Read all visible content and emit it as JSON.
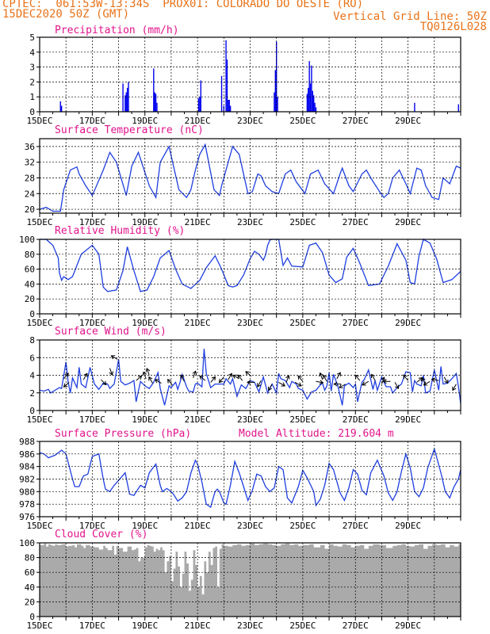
{
  "header": {
    "line1_left": "CPTEC:  061:53W-13:34S  PROX01: COLORADO DO OESTE (RO)",
    "line2_left": "15DEC2020 50Z (GMT)",
    "line2_right": "Vertical Grid Line: 50Z",
    "line3_right": "TQ0126L028"
  },
  "colors": {
    "series": "#1f3fe0",
    "title": "#e0148c",
    "header": "#e8731a",
    "bars": "#0000ee",
    "cloud": "#aaaaaa"
  },
  "x_tick_labels": [
    "15DEC",
    "17DEC",
    "19DEC",
    "21DEC",
    "23DEC",
    "25DEC",
    "27DEC",
    "29DEC"
  ],
  "chart_data": [
    {
      "type": "bar",
      "title": "Precipitation (mm/h)",
      "x": "hours since 15DEC 00Z",
      "ylim": [
        0,
        5
      ],
      "yticks": [
        0,
        1,
        2,
        3,
        4,
        5
      ],
      "events": [
        [
          19,
          0.7
        ],
        [
          20,
          0.4
        ],
        [
          76,
          1.9
        ],
        [
          78,
          1.1
        ],
        [
          79,
          1.3
        ],
        [
          80,
          1.6
        ],
        [
          81,
          2.0
        ],
        [
          104,
          2.9
        ],
        [
          105,
          1.3
        ],
        [
          106,
          1.2
        ],
        [
          107,
          0.6
        ],
        [
          145,
          0.9
        ],
        [
          146,
          1.0
        ],
        [
          147,
          2.1
        ],
        [
          166,
          2.4
        ],
        [
          168,
          0.4
        ],
        [
          170,
          4.8
        ],
        [
          171,
          3.5
        ],
        [
          172,
          0.8
        ],
        [
          173,
          0.8
        ],
        [
          174,
          0.4
        ],
        [
          214,
          1.3
        ],
        [
          215,
          2.8
        ],
        [
          216,
          4.7
        ],
        [
          217,
          1.0
        ],
        [
          244,
          1.2
        ],
        [
          245,
          1.6
        ],
        [
          246,
          3.4
        ],
        [
          247,
          1.9
        ],
        [
          248,
          3.1
        ],
        [
          249,
          1.4
        ],
        [
          250,
          1.1
        ],
        [
          251,
          0.6
        ],
        [
          252,
          0.3
        ],
        [
          342,
          0.6
        ],
        [
          382,
          0.5
        ]
      ]
    },
    {
      "type": "line",
      "title": "Surface Temperature (nC)",
      "ylim": [
        19,
        38
      ],
      "yticks": [
        20,
        24,
        28,
        32,
        36
      ],
      "x": [
        0,
        6,
        12,
        19,
        22,
        28,
        34,
        36,
        42,
        48,
        58,
        64,
        70,
        79,
        84,
        90,
        100,
        106,
        110,
        118,
        127,
        134,
        138,
        142,
        146,
        151,
        159,
        164,
        166,
        172,
        176,
        182,
        190,
        194,
        199,
        202,
        206,
        212,
        218,
        224,
        229,
        234,
        238,
        242,
        247,
        254,
        260,
        268,
        274,
        276,
        278,
        282,
        286,
        294,
        298,
        302,
        310,
        314,
        318,
        322,
        328,
        334,
        338,
        344,
        348,
        352,
        358,
        364,
        368,
        374,
        380,
        384
      ],
      "values": [
        20,
        20.5,
        19.5,
        19.5,
        25,
        30,
        30.8,
        29,
        26,
        23.5,
        30,
        34.5,
        32,
        23.5,
        31,
        34.5,
        26,
        23,
        32,
        36,
        25,
        23,
        25,
        30,
        34,
        36.5,
        25,
        23.5,
        26,
        32,
        36,
        34,
        24,
        24.5,
        29,
        28.5,
        26,
        24.5,
        24,
        29,
        30,
        27,
        25.5,
        24,
        29,
        30,
        26.5,
        24,
        29,
        30.5,
        29,
        26,
        24.5,
        29,
        30,
        28,
        24.5,
        23,
        24,
        28,
        30,
        26.5,
        24,
        30.5,
        30,
        26,
        23,
        22.5,
        28,
        26.5,
        31,
        30.5
      ]
    },
    {
      "type": "line",
      "title": "Relative Humidity (%)",
      "ylim": [
        0,
        100
      ],
      "yticks": [
        0,
        20,
        40,
        60,
        80,
        100
      ],
      "x": [
        0,
        3,
        6,
        12,
        17,
        18,
        20,
        22,
        26,
        30,
        38,
        48,
        54,
        58,
        62,
        70,
        76,
        80,
        86,
        92,
        98,
        104,
        110,
        118,
        124,
        130,
        138,
        146,
        152,
        160,
        166,
        172,
        176,
        180,
        186,
        192,
        196,
        200,
        204,
        206,
        208,
        210,
        212,
        214,
        216,
        218,
        222,
        226,
        230,
        240,
        246,
        252,
        258,
        264,
        270,
        276,
        280,
        286,
        292,
        300,
        310,
        318,
        326,
        334,
        338,
        342,
        346,
        350,
        356,
        362,
        368,
        376,
        384
      ],
      "values": [
        100,
        100,
        100,
        92,
        75,
        55,
        45,
        50,
        46,
        50,
        80,
        92,
        80,
        36,
        30,
        32,
        58,
        90,
        58,
        30,
        32,
        50,
        75,
        85,
        60,
        40,
        34,
        45,
        62,
        78,
        60,
        38,
        36,
        38,
        52,
        74,
        84,
        80,
        72,
        79,
        92,
        99,
        100,
        100,
        100,
        100,
        65,
        75,
        64,
        63,
        92,
        95,
        82,
        52,
        42,
        47,
        76,
        88,
        68,
        38,
        40,
        64,
        94,
        72,
        42,
        40,
        78,
        100,
        95,
        74,
        42,
        46,
        57
      ]
    },
    {
      "type": "line",
      "title": "Surface Wind (m/s)",
      "ylim": [
        0,
        8
      ],
      "yticks": [
        0,
        2,
        4,
        6,
        8
      ],
      "x": [
        0,
        4,
        8,
        10,
        14,
        18,
        20,
        24,
        26,
        28,
        30,
        34,
        36,
        38,
        42,
        46,
        50,
        54,
        58,
        62,
        64,
        68,
        72,
        74,
        78,
        82,
        86,
        88,
        92,
        96,
        100,
        104,
        108,
        110,
        114,
        118,
        120,
        124,
        126,
        128,
        130,
        134,
        136,
        140,
        142,
        144,
        148,
        150,
        152,
        156,
        160,
        164,
        168,
        170,
        174,
        176,
        180,
        184,
        188,
        192,
        196,
        200,
        204,
        208,
        212,
        216,
        218,
        220,
        224,
        228,
        230,
        234,
        236,
        240,
        244,
        248,
        252,
        256,
        258,
        260,
        262,
        264,
        266,
        268,
        272,
        276,
        278,
        282,
        286,
        288,
        290,
        294,
        296,
        300,
        304,
        306,
        308,
        312,
        316,
        320,
        322,
        326,
        330,
        334,
        338,
        340,
        342,
        344,
        348,
        350,
        352,
        356,
        360,
        364,
        366,
        368,
        372,
        376,
        380,
        382,
        384
      ],
      "values": [
        2.3,
        2.2,
        2.4,
        2.0,
        2.3,
        2.6,
        2.5,
        5.5,
        3.2,
        2.0,
        3.7,
        2.6,
        4.9,
        3.0,
        2.6,
        4.9,
        3.0,
        2.4,
        3.1,
        3.0,
        2.5,
        3.0,
        5.8,
        3.3,
        2.9,
        3.1,
        3.4,
        1.0,
        3.3,
        2.8,
        2.5,
        3.2,
        4.3,
        2.5,
        0.6,
        2.8,
        2.6,
        3.2,
        2.4,
        3.2,
        4.1,
        2.7,
        2.2,
        2.1,
        3.0,
        3.1,
        2.7,
        7.0,
        4.2,
        2.6,
        3.0,
        3.0,
        3.0,
        3.6,
        3.0,
        3.6,
        1.6,
        2.9,
        2.5,
        3.4,
        3.2,
        2.1,
        3.8,
        2.0,
        3.0,
        2.0,
        4.2,
        3.6,
        3.4,
        2.6,
        3.3,
        3.0,
        2.5,
        2.3,
        1.3,
        2.1,
        2.3,
        2.9,
        3.1,
        2.3,
        2.8,
        4.3,
        2.2,
        4.1,
        2.8,
        0.6,
        2.8,
        3.1,
        2.6,
        3.0,
        1.0,
        3.2,
        3.5,
        4.6,
        2.4,
        3.4,
        2.3,
        3.8,
        2.7,
        2.7,
        2.0,
        2.6,
        3.0,
        4.4,
        4.3,
        2.1,
        3.4,
        3.0,
        2.8,
        4.0,
        2.0,
        2.2,
        4.6,
        2.3,
        5.0,
        3.0,
        3.1,
        3.6,
        4.2,
        2.7,
        0.8
      ],
      "arrows": [
        [
          22,
          3.6,
          140
        ],
        [
          27,
          3.2,
          310
        ],
        [
          40,
          3.5,
          150
        ],
        [
          56,
          3.5,
          45
        ],
        [
          64,
          4.8,
          20
        ],
        [
          71,
          5.8,
          -120
        ],
        [
          88,
          3.4,
          130
        ],
        [
          97,
          3.6,
          -160
        ],
        [
          100,
          4.0,
          -160
        ],
        [
          103,
          3.1,
          -150
        ],
        [
          111,
          3.1,
          -120
        ],
        [
          121,
          2.9,
          -140
        ],
        [
          132,
          3.3,
          -150
        ],
        [
          140,
          3.7,
          160
        ],
        [
          151,
          3.4,
          -130
        ],
        [
          156,
          3.2,
          140
        ],
        [
          168,
          3.8,
          -40
        ],
        [
          172,
          3.5,
          150
        ],
        [
          182,
          3.6,
          -120
        ],
        [
          185,
          3.4,
          -140
        ],
        [
          193,
          3.9,
          -130
        ],
        [
          196,
          3.2,
          -90
        ],
        [
          202,
          3.4,
          -30
        ],
        [
          212,
          3.0,
          -30
        ],
        [
          218,
          3.2,
          60
        ],
        [
          225,
          3.2,
          160
        ],
        [
          233,
          3.2,
          60
        ],
        [
          240,
          3.3,
          -140
        ],
        [
          252,
          3.3,
          80
        ],
        [
          258,
          3.5,
          -160
        ],
        [
          262,
          3.3,
          -150
        ],
        [
          271,
          3.6,
          150
        ],
        [
          275,
          3.0,
          -90
        ],
        [
          279,
          3.0,
          -60
        ],
        [
          292,
          3.4,
          -140
        ],
        [
          300,
          3.3,
          -60
        ],
        [
          306,
          3.4,
          -150
        ],
        [
          312,
          3.0,
          160
        ],
        [
          320,
          3.3,
          -90
        ],
        [
          324,
          3.2,
          30
        ],
        [
          336,
          3.4,
          -140
        ],
        [
          344,
          3.2,
          130
        ],
        [
          352,
          3.0,
          -150
        ],
        [
          356,
          3.3,
          -60
        ],
        [
          364,
          3.4,
          -100
        ],
        [
          369,
          3.8,
          30
        ],
        [
          380,
          3.0,
          -30
        ]
      ]
    },
    {
      "type": "line",
      "title": "Surface Pressure (hPa)",
      "annotation": "Model Altitude: 219.604 m",
      "ylim": [
        976,
        988
      ],
      "yticks": [
        976,
        978,
        980,
        982,
        984,
        986,
        988
      ],
      "x": [
        0,
        4,
        8,
        14,
        20,
        24,
        30,
        32,
        36,
        40,
        44,
        48,
        54,
        58,
        60,
        64,
        68,
        72,
        78,
        82,
        86,
        92,
        96,
        100,
        106,
        110,
        112,
        116,
        120,
        122,
        126,
        130,
        134,
        136,
        138,
        142,
        144,
        148,
        152,
        156,
        158,
        160,
        162,
        164,
        168,
        170,
        174,
        178,
        182,
        186,
        190,
        194,
        198,
        202,
        206,
        210,
        214,
        218,
        222,
        226,
        230,
        236,
        240,
        244,
        250,
        252,
        256,
        260,
        264,
        268,
        274,
        278,
        282,
        286,
        290,
        294,
        298,
        302,
        308,
        314,
        318,
        322,
        326,
        330,
        334,
        338,
        342,
        346,
        350,
        354,
        360,
        366,
        370,
        374,
        378,
        382,
        384
      ],
      "values": [
        986.2,
        986.0,
        985.4,
        985.8,
        986.6,
        986.0,
        982.0,
        980.8,
        980.8,
        982.5,
        982.8,
        985.6,
        986.0,
        982.0,
        980.4,
        980.0,
        981.0,
        981.8,
        983.0,
        979.6,
        979.4,
        981.0,
        980.6,
        983.0,
        984.4,
        981.0,
        980.0,
        980.5,
        980.0,
        979.6,
        978.5,
        979.0,
        980.0,
        981.5,
        983.0,
        985.0,
        984.4,
        981.5,
        978.0,
        977.5,
        978.8,
        980.0,
        980.4,
        980.0,
        978.2,
        978.0,
        981.0,
        984.8,
        983.0,
        980.8,
        978.6,
        980.2,
        982.8,
        982.5,
        980.8,
        980.0,
        980.6,
        984.0,
        983.5,
        979.0,
        978.2,
        980.8,
        983.4,
        982.2,
        980.0,
        977.8,
        978.8,
        981.0,
        984.5,
        983.5,
        979.8,
        978.6,
        980.6,
        983.5,
        982.8,
        980.2,
        979.5,
        983.0,
        985.0,
        982.5,
        979.8,
        978.6,
        980.0,
        983.2,
        986.0,
        983.8,
        980.0,
        979.2,
        980.6,
        983.8,
        986.8,
        983.0,
        980.0,
        979.0,
        980.8,
        982.0,
        983.5
      ]
    },
    {
      "type": "area",
      "title": "Cloud Cover (%)",
      "ylim": [
        0,
        100
      ],
      "yticks": [
        0,
        20,
        40,
        60,
        80,
        100
      ],
      "x": [
        0,
        4,
        6,
        8,
        10,
        12,
        14,
        16,
        20,
        24,
        26,
        30,
        32,
        34,
        38,
        40,
        42,
        46,
        50,
        54,
        58,
        60,
        62,
        66,
        68,
        70,
        72,
        76,
        80,
        84,
        86,
        88,
        90,
        92,
        96,
        98,
        100,
        102,
        104,
        106,
        108,
        110,
        112,
        114,
        116,
        118,
        120,
        122,
        124,
        126,
        128,
        130,
        132,
        134,
        136,
        138,
        140,
        142,
        144,
        146,
        148,
        150,
        152,
        154,
        156,
        158,
        160,
        162,
        164,
        166,
        168,
        172,
        176,
        180,
        184,
        188,
        192,
        196,
        200,
        204,
        208,
        212,
        216,
        220,
        224,
        228,
        232,
        236,
        240,
        246,
        250,
        256,
        260,
        264,
        268,
        272,
        276,
        280,
        284,
        288,
        292,
        296,
        300,
        304,
        310,
        316,
        322,
        326,
        330,
        334,
        338,
        342,
        346,
        350,
        354,
        358,
        362,
        366,
        370,
        374,
        378,
        382,
        384
      ],
      "values": [
        97,
        99,
        95,
        98,
        97,
        96,
        98,
        97,
        98,
        95,
        96,
        97,
        94,
        98,
        96,
        93,
        97,
        95,
        94,
        91,
        96,
        93,
        90,
        96,
        84,
        96,
        93,
        88,
        95,
        90,
        91,
        93,
        75,
        80,
        94,
        97,
        96,
        95,
        88,
        92,
        90,
        94,
        90,
        60,
        75,
        82,
        48,
        65,
        88,
        68,
        40,
        58,
        88,
        72,
        35,
        50,
        90,
        70,
        40,
        55,
        30,
        75,
        60,
        88,
        70,
        93,
        95,
        40,
        92,
        98,
        96,
        95,
        97,
        98,
        96,
        97,
        99,
        97,
        98,
        99,
        98,
        97,
        96,
        98,
        99,
        97,
        98,
        96,
        97,
        98,
        94,
        97,
        92,
        98,
        96,
        95,
        98,
        97,
        94,
        96,
        97,
        92,
        96,
        98,
        97,
        93,
        96,
        97,
        98,
        96,
        95,
        97,
        98,
        92,
        96,
        98,
        97,
        98,
        94,
        97,
        95,
        98,
        96
      ]
    }
  ]
}
